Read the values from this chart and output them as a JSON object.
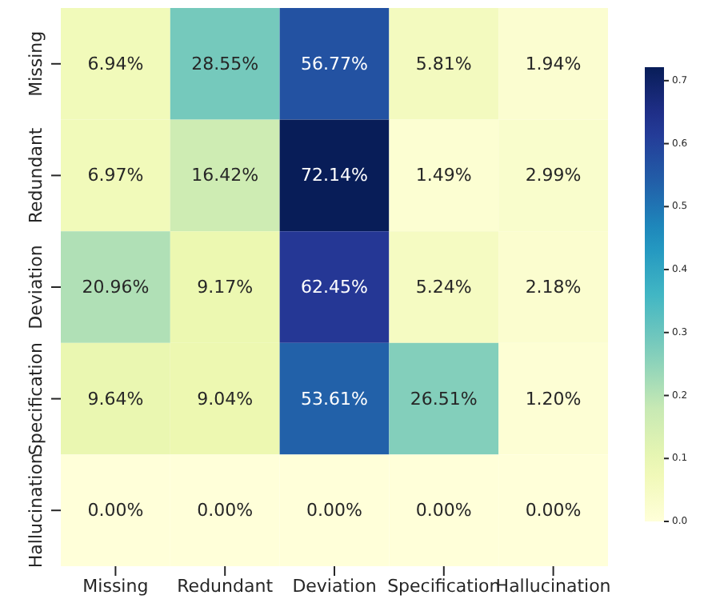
{
  "chart_data": {
    "type": "heatmap",
    "categories": [
      "Missing",
      "Redundant",
      "Deviation",
      "Specification",
      "Hallucination"
    ],
    "y_categories": [
      "Missing",
      "Redundant",
      "Deviation",
      "Specification",
      "Hallucination"
    ],
    "cells": [
      [
        0.0694,
        0.2855,
        0.5677,
        0.0581,
        0.0194
      ],
      [
        0.0697,
        0.1642,
        0.7214,
        0.0149,
        0.0299
      ],
      [
        0.2096,
        0.0917,
        0.6245,
        0.0524,
        0.0218
      ],
      [
        0.0964,
        0.0904,
        0.5361,
        0.2651,
        0.012
      ],
      [
        0,
        0,
        0,
        0,
        0
      ]
    ],
    "cell_labels": [
      [
        "6.94%",
        "28.55%",
        "56.77%",
        "5.81%",
        "1.94%"
      ],
      [
        "6.97%",
        "16.42%",
        "72.14%",
        "1.49%",
        "2.99%"
      ],
      [
        "20.96%",
        "9.17%",
        "62.45%",
        "5.24%",
        "2.18%"
      ],
      [
        "9.64%",
        "9.04%",
        "53.61%",
        "26.51%",
        "1.20%"
      ],
      [
        "0.00%",
        "0.00%",
        "0.00%",
        "0.00%",
        "0.00%"
      ]
    ],
    "clim": [
      0,
      0.7214
    ],
    "cticks": [
      {
        "value": 0,
        "label": "0.0"
      },
      {
        "value": 0.1,
        "label": "0.1"
      },
      {
        "value": 0.2,
        "label": "0.2"
      },
      {
        "value": 0.3,
        "label": "0.3"
      },
      {
        "value": 0.4,
        "label": "0.4"
      },
      {
        "value": 0.5,
        "label": "0.5"
      },
      {
        "value": 0.6,
        "label": "0.6"
      },
      {
        "value": 0.7,
        "label": "0.7"
      }
    ]
  }
}
